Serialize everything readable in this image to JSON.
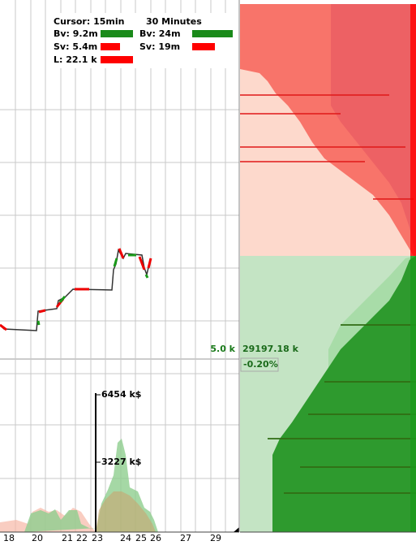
{
  "legend": {
    "cursor": "Cursor: 15min",
    "period": "30 Minutes",
    "left": [
      "Bv: 9.2m",
      "Sv: 5.4m",
      "L: 22.1 k"
    ],
    "right": [
      "Bv: 24m",
      "Sv: 19m"
    ]
  },
  "price": {
    "size": "5.0 k",
    "value": "29197.18 k",
    "change": "-0.20%"
  },
  "volume_axis": {
    "ticks": [
      "6454 k$",
      "3227 k$"
    ]
  },
  "x_axis": {
    "labels": [
      "18",
      "20",
      "21",
      "22",
      "23",
      "24",
      "25",
      "26",
      "27",
      "29"
    ]
  }
}
